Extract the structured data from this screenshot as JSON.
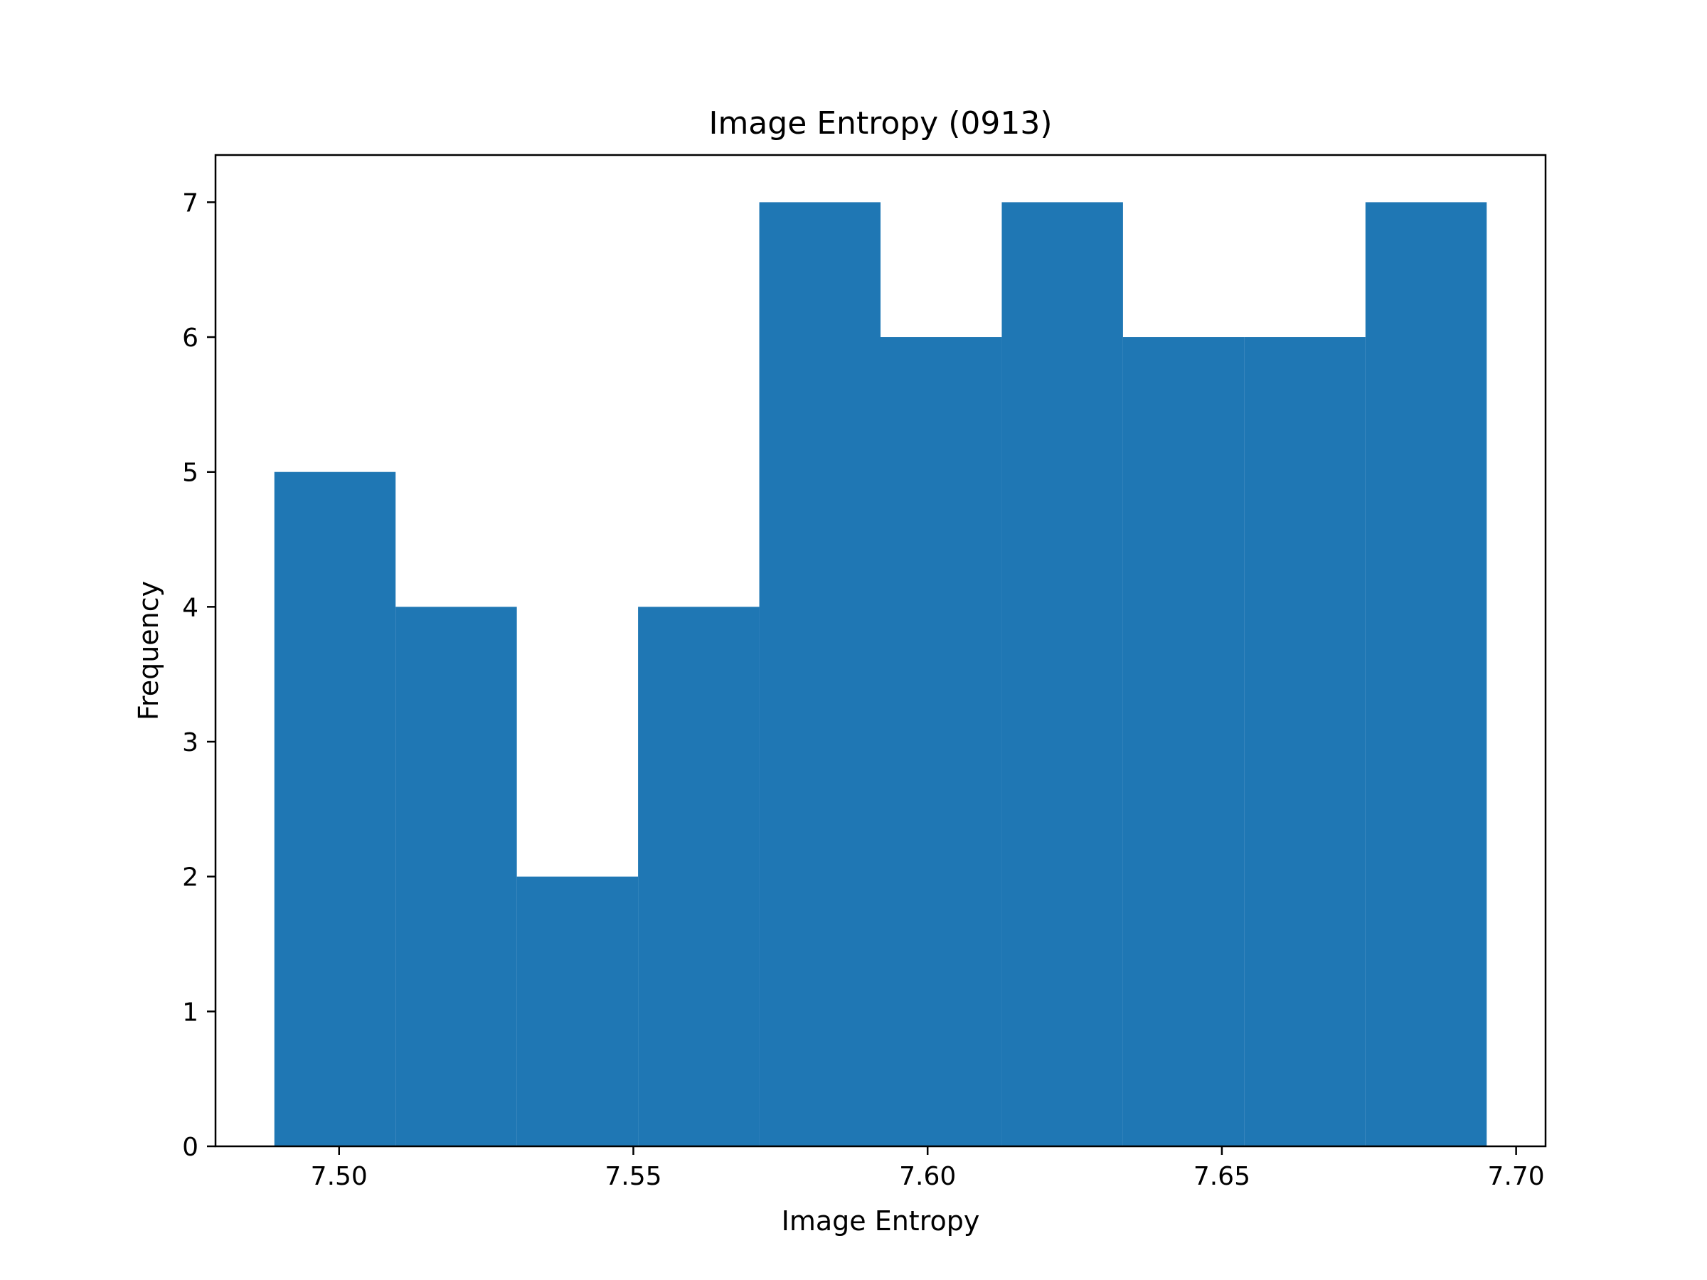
{
  "chart_data": {
    "type": "bar",
    "title": "Image Entropy (0913)",
    "xlabel": "Image Entropy",
    "ylabel": "Frequency",
    "xlim": [
      7.479,
      7.705
    ],
    "ylim": [
      0,
      7.35
    ],
    "bin_edges": [
      7.489,
      7.5096,
      7.5302,
      7.5508,
      7.5714,
      7.592,
      7.6126,
      7.6332,
      7.6538,
      7.6744,
      7.695
    ],
    "values": [
      5,
      4,
      2,
      4,
      7,
      6,
      7,
      6,
      6,
      7
    ],
    "xticks": [
      7.5,
      7.55,
      7.6,
      7.65,
      7.7
    ],
    "xtick_labels": [
      "7.50",
      "7.55",
      "7.60",
      "7.65",
      "7.70"
    ],
    "yticks": [
      0,
      1,
      2,
      3,
      4,
      5,
      6,
      7
    ],
    "ytick_labels": [
      "0",
      "1",
      "2",
      "3",
      "4",
      "5",
      "6",
      "7"
    ],
    "bar_color": "#1f77b4",
    "grid": false,
    "legend": "none"
  }
}
